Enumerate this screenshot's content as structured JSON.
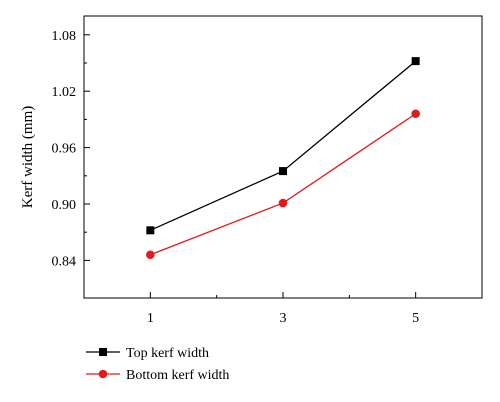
{
  "chart_data": {
    "type": "line",
    "x": [
      1,
      3,
      5
    ],
    "xticks": [
      1,
      3,
      5
    ],
    "xlim": [
      0,
      6
    ],
    "yticks": [
      0.84,
      0.9,
      0.96,
      1.02,
      1.08
    ],
    "ylim": [
      0.8,
      1.1
    ],
    "xlabel": "",
    "ylabel": "Kerf width (mm)",
    "grid": false,
    "legend_position": "bottom-left",
    "series": [
      {
        "name": "Top kerf width",
        "values": [
          0.872,
          0.935,
          1.052
        ],
        "color": "#000000",
        "marker": "square"
      },
      {
        "name": "Bottom kerf width",
        "values": [
          0.846,
          0.901,
          0.996
        ],
        "color": "#e31a1c",
        "marker": "circle"
      }
    ]
  }
}
